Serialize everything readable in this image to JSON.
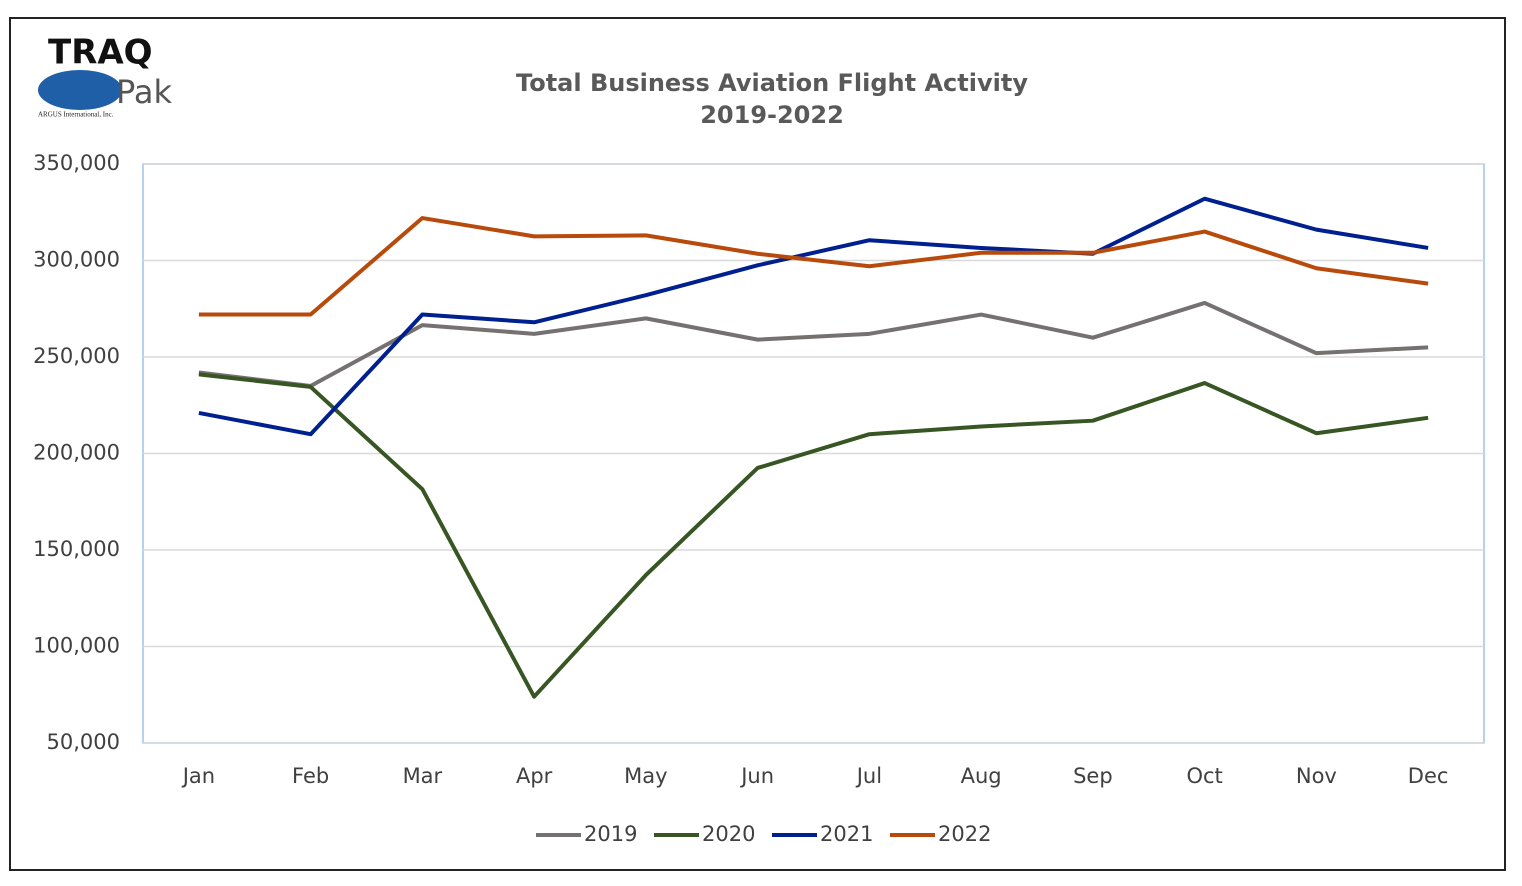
{
  "logo": {
    "name": "TRAQ",
    "sub": "Pak",
    "company": "ARGUS International, Inc."
  },
  "chart_data": {
    "type": "line",
    "title": "Total Business Aviation Flight Activity",
    "subtitle": "2019-2022",
    "categories": [
      "Jan",
      "Feb",
      "Mar",
      "Apr",
      "May",
      "Jun",
      "Jul",
      "Aug",
      "Sep",
      "Oct",
      "Nov",
      "Dec"
    ],
    "series": [
      {
        "name": "2019",
        "color": "#767171",
        "values": [
          242000,
          235000,
          266500,
          262000,
          270000,
          259000,
          262000,
          272000,
          260000,
          278000,
          252000,
          255000
        ]
      },
      {
        "name": "2020",
        "color": "#375623",
        "values": [
          241000,
          234500,
          181500,
          74000,
          137000,
          192500,
          210000,
          214000,
          217000,
          236500,
          210500,
          218500
        ]
      },
      {
        "name": "2021",
        "color": "#002090",
        "values": [
          221000,
          210000,
          272000,
          268000,
          282000,
          297500,
          310500,
          306500,
          303500,
          332000,
          316000,
          306500
        ]
      },
      {
        "name": "2022",
        "color": "#b84a0c",
        "values": [
          272000,
          272000,
          322000,
          312500,
          313000,
          303500,
          297000,
          304000,
          304000,
          315000,
          296000,
          288000
        ]
      }
    ],
    "ylim": [
      50000,
      350000
    ],
    "yticks": [
      {
        "value": 50000,
        "label": "50,000"
      },
      {
        "value": 100000,
        "label": "100,000"
      },
      {
        "value": 150000,
        "label": "150,000"
      },
      {
        "value": 200000,
        "label": "200,000"
      },
      {
        "value": 250000,
        "label": "250,000"
      },
      {
        "value": 300000,
        "label": "300,000"
      },
      {
        "value": 350000,
        "label": "350,000"
      }
    ],
    "grid": true,
    "legend": "bottom"
  }
}
